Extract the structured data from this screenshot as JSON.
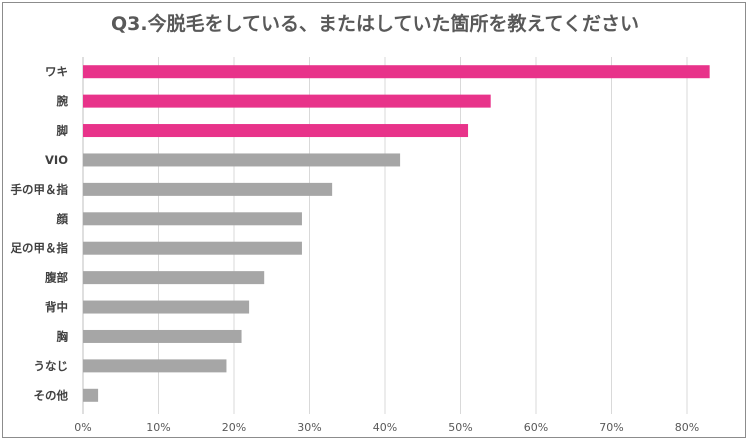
{
  "chart_data": {
    "type": "bar",
    "orientation": "horizontal",
    "title": "Q3.今脱毛をしている、またはしていた箇所を教えてください",
    "xlabel": "",
    "ylabel": "",
    "xlim": [
      0,
      0.85
    ],
    "grid": true,
    "categories": [
      "ワキ",
      "腕",
      "脚",
      "VIO",
      "手の甲＆指",
      "顔",
      "足の甲＆指",
      "腹部",
      "背中",
      "胸",
      "うなじ",
      "その他"
    ],
    "values": [
      0.83,
      0.54,
      0.51,
      0.42,
      0.33,
      0.29,
      0.29,
      0.24,
      0.22,
      0.21,
      0.19,
      0.02
    ],
    "highlighted": [
      true,
      true,
      true,
      false,
      false,
      false,
      false,
      false,
      false,
      false,
      false,
      false
    ],
    "ticks": [
      0,
      0.1,
      0.2,
      0.3,
      0.4,
      0.5,
      0.6,
      0.7,
      0.8
    ],
    "tick_labels": [
      "0%",
      "10%",
      "20%",
      "30%",
      "40%",
      "50%",
      "60%",
      "70%",
      "80%"
    ]
  },
  "colors": {
    "highlight": "#e8338a",
    "default": "#a6a6a6",
    "grid": "#d9d9d9",
    "axis": "#bfbfbf"
  }
}
